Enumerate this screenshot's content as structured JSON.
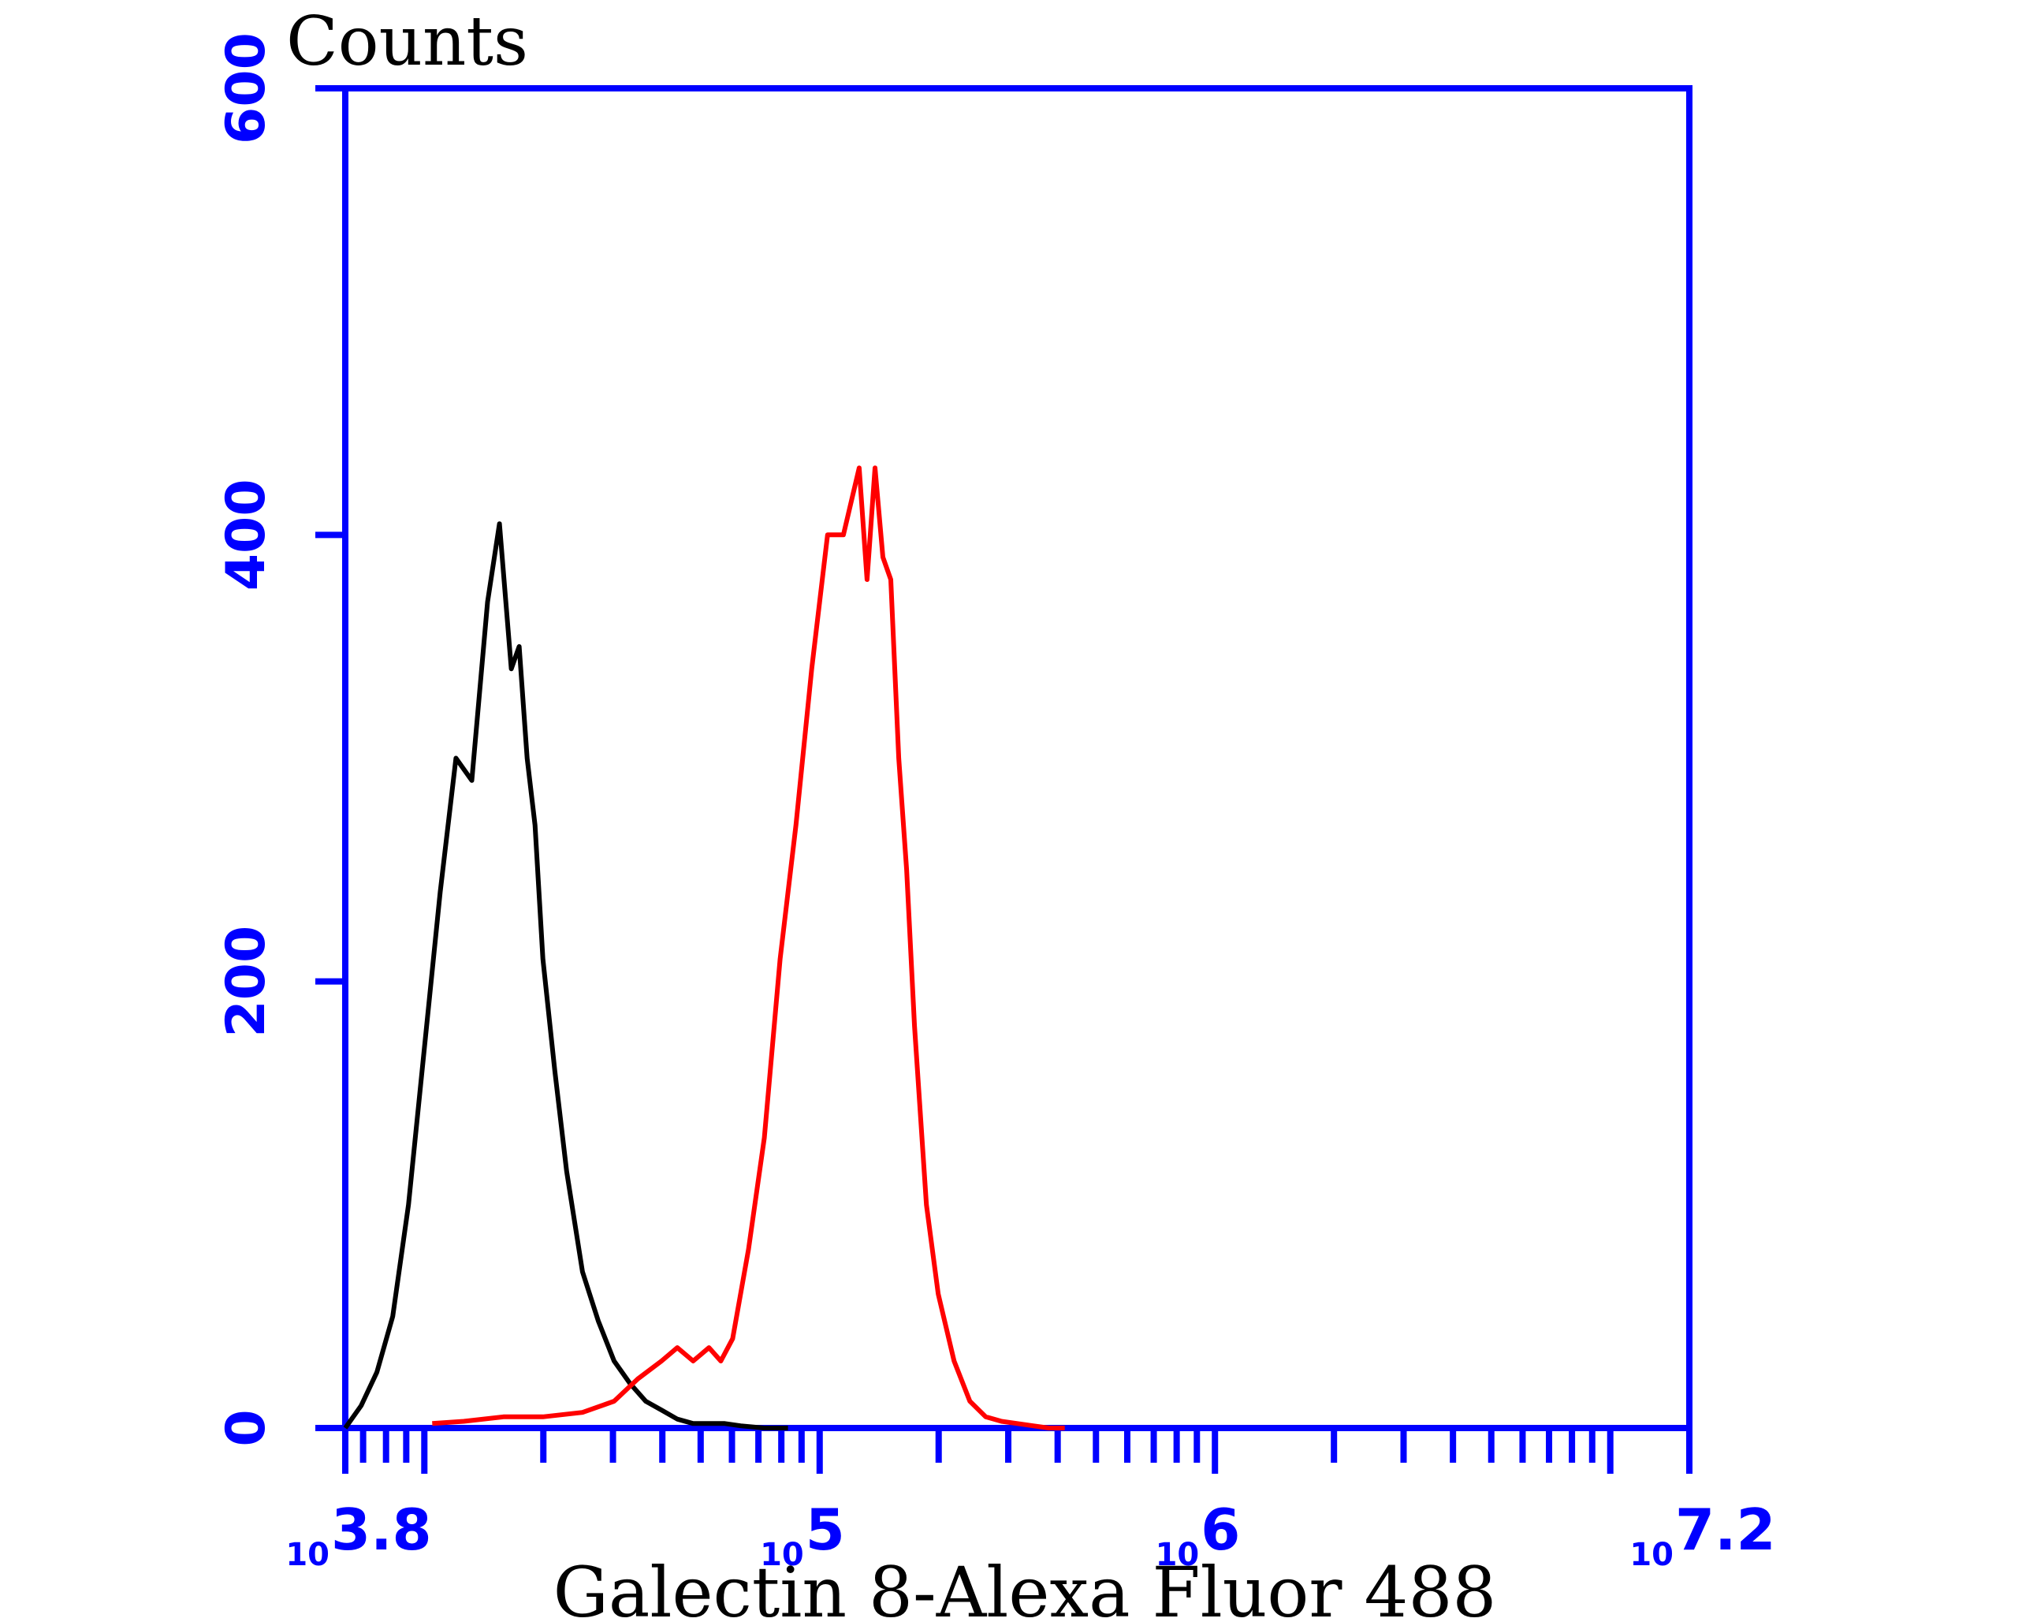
{
  "chart_data": {
    "type": "line",
    "ylabel": "Counts",
    "xlabel": "Galectin 8-Alexa Fluor 488",
    "x_scale": "log",
    "x_range_log10": [
      3.8,
      7.2
    ],
    "ylim": [
      0,
      600
    ],
    "x_tick_labels": [
      {
        "base": "10",
        "exp": "3.8",
        "log10": 3.8
      },
      {
        "base": "10",
        "exp": "5",
        "log10": 5
      },
      {
        "base": "10",
        "exp": "6",
        "log10": 6
      },
      {
        "base": "10",
        "exp": "7.2",
        "log10": 7.2
      }
    ],
    "y_ticks": [
      0,
      200,
      400,
      600
    ],
    "grid": false,
    "axis_color": "#0000ff",
    "series": [
      {
        "color": "#000000",
        "x_log10": [
          3.8,
          3.84,
          3.88,
          3.92,
          3.96,
          4.0,
          4.04,
          4.08,
          4.12,
          4.16,
          4.19,
          4.22,
          4.24,
          4.26,
          4.28,
          4.3,
          4.33,
          4.36,
          4.4,
          4.44,
          4.48,
          4.52,
          4.56,
          4.6,
          4.64,
          4.68,
          4.72,
          4.76,
          4.8,
          4.86,
          4.92
        ],
        "y": [
          0,
          10,
          25,
          50,
          100,
          170,
          240,
          300,
          290,
          370,
          405,
          340,
          350,
          300,
          270,
          210,
          160,
          115,
          70,
          48,
          30,
          20,
          12,
          8,
          4,
          2,
          2,
          2,
          1,
          0,
          0
        ]
      },
      {
        "color": "#ff0000",
        "x_log10": [
          4.02,
          4.1,
          4.2,
          4.3,
          4.4,
          4.48,
          4.54,
          4.6,
          4.64,
          4.68,
          4.72,
          4.75,
          4.78,
          4.82,
          4.86,
          4.9,
          4.94,
          4.98,
          5.02,
          5.06,
          5.1,
          5.12,
          5.14,
          5.16,
          5.18,
          5.2,
          5.22,
          5.24,
          5.27,
          5.3,
          5.34,
          5.38,
          5.42,
          5.46,
          5.5,
          5.54,
          5.58,
          5.62
        ],
        "y": [
          2,
          3,
          5,
          5,
          7,
          12,
          22,
          30,
          36,
          30,
          36,
          30,
          40,
          80,
          130,
          210,
          270,
          340,
          400,
          400,
          430,
          380,
          430,
          390,
          380,
          300,
          250,
          180,
          100,
          60,
          30,
          12,
          5,
          3,
          2,
          1,
          0,
          0
        ]
      }
    ]
  }
}
